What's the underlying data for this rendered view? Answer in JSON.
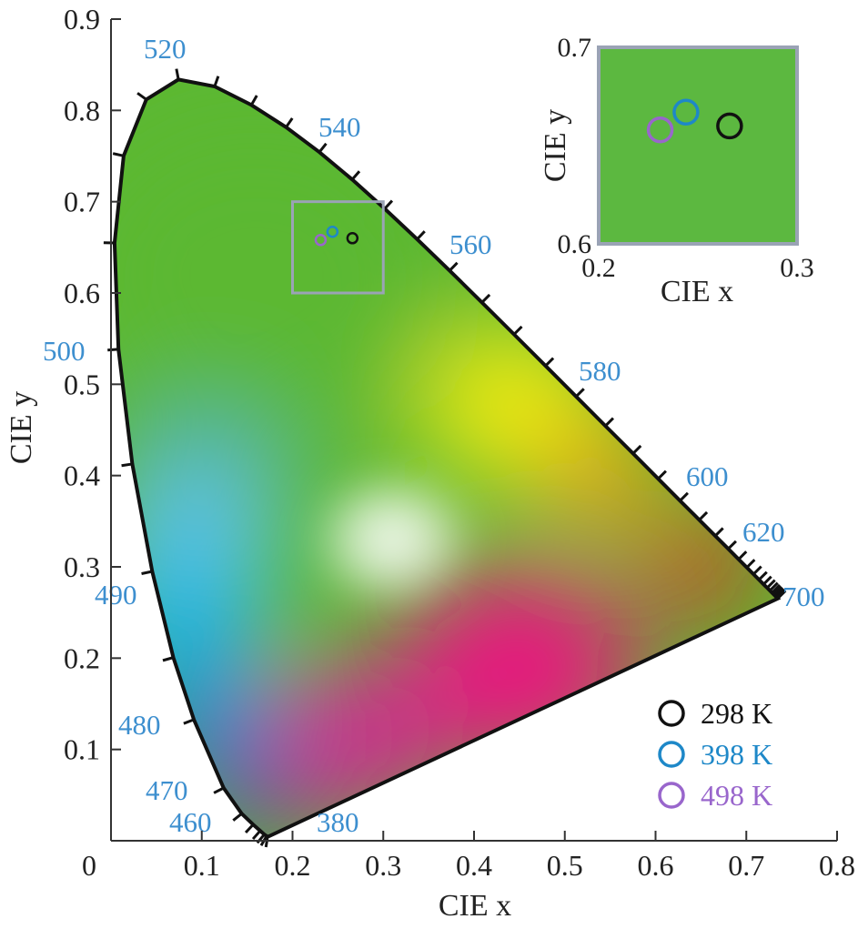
{
  "chart_data": {
    "type": "scatter",
    "xlabel": "CIE x",
    "ylabel": "CIE y",
    "xlim": [
      0,
      0.8
    ],
    "ylim": [
      0,
      0.9
    ],
    "x_ticks": [
      "0",
      "0.1",
      "0.2",
      "0.3",
      "0.4",
      "0.5",
      "0.6",
      "0.7",
      "0.8"
    ],
    "y_ticks": [
      "0.1",
      "0.2",
      "0.3",
      "0.4",
      "0.5",
      "0.6",
      "0.7",
      "0.8",
      "0.9"
    ],
    "wavelength_labels": [
      "380",
      "460",
      "470",
      "480",
      "490",
      "500",
      "520",
      "540",
      "560",
      "580",
      "600",
      "620",
      "700"
    ],
    "series": [
      {
        "name": "298 K",
        "color": "#111111",
        "x": [
          0.266
        ],
        "y": [
          0.66
        ]
      },
      {
        "name": "398 K",
        "color": "#1e88c8",
        "x": [
          0.244
        ],
        "y": [
          0.667
        ]
      },
      {
        "name": "498 K",
        "color": "#9966cc",
        "x": [
          0.231
        ],
        "y": [
          0.658
        ]
      }
    ],
    "legend_position": "bottom-right",
    "inset": {
      "xlabel": "CIE x",
      "ylabel": "CIE y",
      "xlim": [
        0.2,
        0.3
      ],
      "ylim": [
        0.6,
        0.7
      ],
      "x_ticks": [
        "0.2",
        "0.3"
      ],
      "y_ticks": [
        "0.6",
        "0.7"
      ]
    }
  }
}
